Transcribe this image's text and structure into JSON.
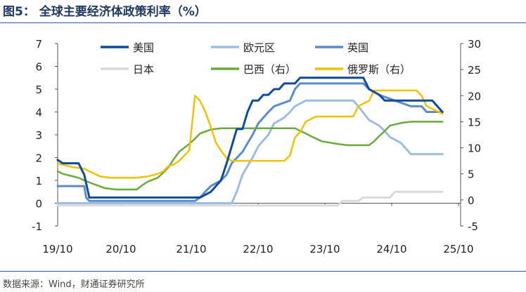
{
  "figure_title": "图5： 全球主要经济体政策利率（%）",
  "source": "数据来源：Wind，财通证券研究所",
  "chart_data": {
    "type": "line",
    "x_ticks": [
      "19/10",
      "20/10",
      "21/10",
      "22/10",
      "23/10",
      "24/10",
      "25/10"
    ],
    "y_left": {
      "ylim": [
        -1,
        7
      ],
      "ticks": [
        "-1",
        "0",
        "1",
        "2",
        "3",
        "4",
        "5",
        "6",
        "7"
      ]
    },
    "y_right": {
      "ylim": [
        -5,
        30
      ],
      "ticks": [
        "-5",
        "0",
        "5",
        "10",
        "15",
        "20",
        "25",
        "30"
      ]
    },
    "legend_position": "top-center",
    "series": [
      {
        "name": "美国",
        "axis": "left",
        "color": "#0d4c9a",
        "width": 3,
        "points": [
          [
            2019.75,
            1.9
          ],
          [
            2019.83,
            1.75
          ],
          [
            2020.0,
            1.75
          ],
          [
            2020.08,
            1.75
          ],
          [
            2020.17,
            1.25
          ],
          [
            2020.25,
            0.25
          ],
          [
            2021.0,
            0.25
          ],
          [
            2022.0,
            0.25
          ],
          [
            2022.17,
            0.5
          ],
          [
            2022.33,
            1.0
          ],
          [
            2022.42,
            1.75
          ],
          [
            2022.5,
            2.5
          ],
          [
            2022.58,
            3.25
          ],
          [
            2022.67,
            3.25
          ],
          [
            2022.75,
            4.0
          ],
          [
            2022.83,
            4.5
          ],
          [
            2022.92,
            4.5
          ],
          [
            2023.0,
            4.75
          ],
          [
            2023.08,
            4.75
          ],
          [
            2023.17,
            5.0
          ],
          [
            2023.25,
            5.0
          ],
          [
            2023.33,
            5.25
          ],
          [
            2023.42,
            5.25
          ],
          [
            2023.5,
            5.25
          ],
          [
            2023.58,
            5.5
          ],
          [
            2024.0,
            5.5
          ],
          [
            2024.58,
            5.5
          ],
          [
            2024.67,
            5.0
          ],
          [
            2024.83,
            4.75
          ],
          [
            2024.92,
            4.5
          ],
          [
            2025.67,
            4.5
          ],
          [
            2025.75,
            4.25
          ],
          [
            2025.83,
            4.0
          ]
        ]
      },
      {
        "name": "欧元区",
        "axis": "left",
        "color": "#9bbde3",
        "width": 3,
        "points": [
          [
            2019.75,
            0.0
          ],
          [
            2022.5,
            0.0
          ],
          [
            2022.58,
            0.5
          ],
          [
            2022.67,
            1.25
          ],
          [
            2022.83,
            2.0
          ],
          [
            2022.92,
            2.5
          ],
          [
            2023.08,
            3.0
          ],
          [
            2023.17,
            3.5
          ],
          [
            2023.33,
            3.75
          ],
          [
            2023.42,
            4.0
          ],
          [
            2023.5,
            4.25
          ],
          [
            2023.67,
            4.5
          ],
          [
            2024.42,
            4.5
          ],
          [
            2024.5,
            4.25
          ],
          [
            2024.67,
            3.65
          ],
          [
            2024.83,
            3.4
          ],
          [
            2024.92,
            3.15
          ],
          [
            2025.0,
            2.9
          ],
          [
            2025.17,
            2.65
          ],
          [
            2025.25,
            2.4
          ],
          [
            2025.33,
            2.15
          ],
          [
            2025.83,
            2.15
          ]
        ]
      },
      {
        "name": "英国",
        "axis": "left",
        "color": "#5a8ccc",
        "width": 3,
        "points": [
          [
            2019.75,
            0.75
          ],
          [
            2020.17,
            0.75
          ],
          [
            2020.2,
            0.25
          ],
          [
            2020.25,
            0.1
          ],
          [
            2021.92,
            0.1
          ],
          [
            2022.0,
            0.25
          ],
          [
            2022.08,
            0.5
          ],
          [
            2022.17,
            0.75
          ],
          [
            2022.33,
            1.0
          ],
          [
            2022.42,
            1.25
          ],
          [
            2022.5,
            1.75
          ],
          [
            2022.67,
            2.25
          ],
          [
            2022.83,
            3.0
          ],
          [
            2022.92,
            3.5
          ],
          [
            2023.08,
            4.0
          ],
          [
            2023.17,
            4.25
          ],
          [
            2023.42,
            4.5
          ],
          [
            2023.5,
            5.0
          ],
          [
            2023.58,
            5.25
          ],
          [
            2024.58,
            5.25
          ],
          [
            2024.67,
            5.0
          ],
          [
            2024.83,
            4.75
          ],
          [
            2025.08,
            4.5
          ],
          [
            2025.33,
            4.25
          ],
          [
            2025.5,
            4.25
          ],
          [
            2025.58,
            4.0
          ],
          [
            2025.83,
            4.0
          ]
        ]
      },
      {
        "name": "日本",
        "axis": "left",
        "color": "#d9d9d9",
        "width": 3,
        "points": [
          [
            2019.75,
            -0.1
          ],
          [
            2024.17,
            -0.1
          ],
          [
            2024.25,
            0.1
          ],
          [
            2024.5,
            0.1
          ],
          [
            2024.58,
            0.25
          ],
          [
            2025.0,
            0.25
          ],
          [
            2025.08,
            0.5
          ],
          [
            2025.83,
            0.5
          ]
        ]
      },
      {
        "name": "巴西（右）",
        "axis": "right",
        "color": "#6aaa3a",
        "width": 2.5,
        "points": [
          [
            2019.75,
            5.5
          ],
          [
            2019.83,
            5.0
          ],
          [
            2020.0,
            4.5
          ],
          [
            2020.08,
            4.25
          ],
          [
            2020.17,
            3.75
          ],
          [
            2020.33,
            3.0
          ],
          [
            2020.5,
            2.25
          ],
          [
            2020.67,
            2.0
          ],
          [
            2021.0,
            2.0
          ],
          [
            2021.08,
            2.75
          ],
          [
            2021.17,
            3.5
          ],
          [
            2021.33,
            4.25
          ],
          [
            2021.42,
            5.25
          ],
          [
            2021.5,
            6.25
          ],
          [
            2021.58,
            7.75
          ],
          [
            2021.67,
            9.25
          ],
          [
            2021.83,
            10.75
          ],
          [
            2021.92,
            11.75
          ],
          [
            2022.0,
            12.75
          ],
          [
            2022.17,
            13.5
          ],
          [
            2022.33,
            13.75
          ],
          [
            2023.5,
            13.75
          ],
          [
            2023.58,
            13.25
          ],
          [
            2023.67,
            12.75
          ],
          [
            2023.75,
            12.25
          ],
          [
            2023.92,
            11.25
          ],
          [
            2024.17,
            10.75
          ],
          [
            2024.33,
            10.5
          ],
          [
            2024.67,
            10.5
          ],
          [
            2024.75,
            11.25
          ],
          [
            2024.83,
            12.25
          ],
          [
            2024.92,
            13.25
          ],
          [
            2025.0,
            14.25
          ],
          [
            2025.17,
            14.75
          ],
          [
            2025.33,
            15.0
          ],
          [
            2025.83,
            15.0
          ]
        ]
      },
      {
        "name": "俄罗斯（右）",
        "axis": "right",
        "color": "#f2c200",
        "width": 2.5,
        "points": [
          [
            2019.75,
            7.0
          ],
          [
            2019.92,
            6.5
          ],
          [
            2020.0,
            6.25
          ],
          [
            2020.17,
            6.0
          ],
          [
            2020.25,
            5.5
          ],
          [
            2020.42,
            4.5
          ],
          [
            2020.58,
            4.25
          ],
          [
            2021.0,
            4.25
          ],
          [
            2021.17,
            4.5
          ],
          [
            2021.33,
            5.0
          ],
          [
            2021.42,
            5.5
          ],
          [
            2021.5,
            6.5
          ],
          [
            2021.58,
            6.75
          ],
          [
            2021.67,
            7.5
          ],
          [
            2021.75,
            8.5
          ],
          [
            2021.83,
            9.5
          ],
          [
            2021.92,
            20.0
          ],
          [
            2022.0,
            19.0
          ],
          [
            2022.08,
            17.0
          ],
          [
            2022.17,
            14.0
          ],
          [
            2022.25,
            11.0
          ],
          [
            2022.33,
            9.5
          ],
          [
            2022.42,
            8.0
          ],
          [
            2022.5,
            7.5
          ],
          [
            2023.33,
            7.5
          ],
          [
            2023.42,
            8.5
          ],
          [
            2023.5,
            12.0
          ],
          [
            2023.58,
            13.0
          ],
          [
            2023.67,
            15.0
          ],
          [
            2023.83,
            16.0
          ],
          [
            2024.42,
            16.0
          ],
          [
            2024.5,
            18.0
          ],
          [
            2024.67,
            19.0
          ],
          [
            2024.75,
            21.0
          ],
          [
            2025.42,
            21.0
          ],
          [
            2025.5,
            20.0
          ],
          [
            2025.58,
            18.0
          ],
          [
            2025.75,
            17.0
          ],
          [
            2025.83,
            16.5
          ]
        ]
      }
    ]
  }
}
